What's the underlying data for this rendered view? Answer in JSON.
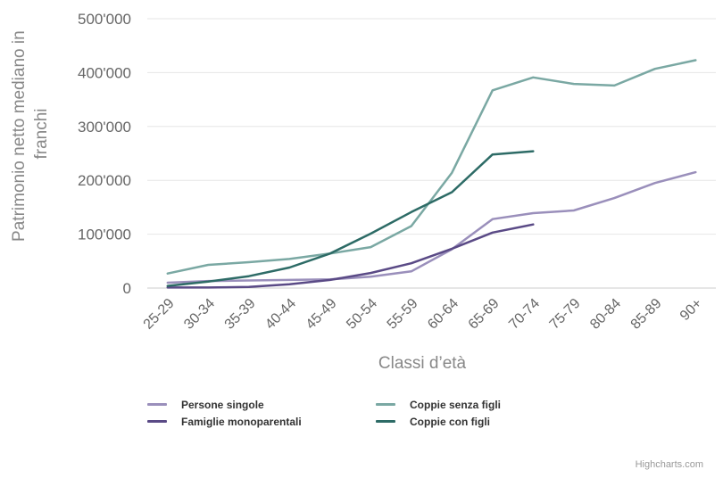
{
  "chart_data": {
    "type": "line",
    "title": "",
    "xlabel": "Classi d’età",
    "ylabel": "Patrimonio netto mediano in franchi",
    "ylabel_lines": [
      "Patrimonio netto mediano in",
      "franchi"
    ],
    "ylim": [
      0,
      500000
    ],
    "yticks": [
      0,
      100000,
      200000,
      300000,
      400000,
      500000
    ],
    "ytick_labels": [
      "0",
      "100'000",
      "200'000",
      "300'000",
      "400'000",
      "500'000"
    ],
    "grid": true,
    "categories": [
      "25-29",
      "30-34",
      "35-39",
      "40-44",
      "45-49",
      "50-54",
      "55-59",
      "60-64",
      "65-69",
      "70-74",
      "75-79",
      "80-84",
      "85-89",
      "90+"
    ],
    "series": [
      {
        "name": "Persone singole",
        "color": "#9a8fbb",
        "values": [
          10000,
          13000,
          14000,
          15000,
          16000,
          21000,
          31000,
          72000,
          128000,
          139000,
          144000,
          167000,
          195000,
          215000
        ]
      },
      {
        "name": "Famiglie monoparentali",
        "color": "#5a4a86",
        "values": [
          1000,
          1000,
          2000,
          7000,
          15000,
          28000,
          46000,
          73000,
          103000,
          118000,
          null,
          null,
          null,
          null
        ]
      },
      {
        "name": "Coppie senza figli",
        "color": "#7aa8a3",
        "values": [
          27000,
          43000,
          48000,
          54000,
          64000,
          76000,
          115000,
          214000,
          367000,
          391000,
          379000,
          376000,
          407000,
          423000
        ]
      },
      {
        "name": "Coppie con figli",
        "color": "#2d6b66",
        "values": [
          4000,
          12000,
          22000,
          38000,
          64000,
          101000,
          141000,
          178000,
          248000,
          254000,
          null,
          null,
          null,
          null
        ]
      }
    ],
    "legend_position": "bottom"
  },
  "credits": "Highcharts.com"
}
